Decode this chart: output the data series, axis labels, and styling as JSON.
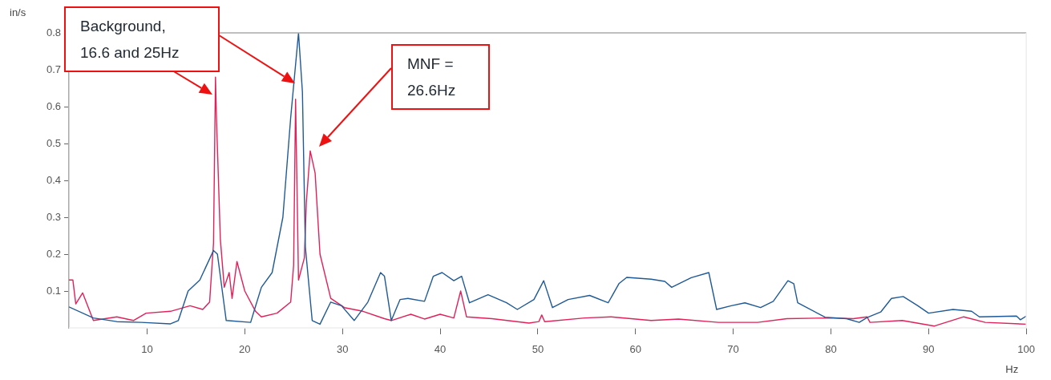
{
  "chart_data": {
    "type": "line",
    "xlabel": "Hz",
    "ylabel": "in/s",
    "xlim": [
      2,
      100
    ],
    "xticks": [
      10,
      20,
      30,
      40,
      50,
      60,
      70,
      80,
      90,
      100
    ],
    "ylim": [
      0,
      0.8
    ],
    "yticks": [
      0.1,
      0.2,
      0.3,
      0.4,
      0.5,
      0.6,
      0.7,
      0.8
    ],
    "grid": false,
    "legend": false,
    "marker": "none",
    "line_style": "solid",
    "annotations": [
      "Background, 16.6 and 25Hz",
      "MNF = 26.6Hz"
    ],
    "series": [
      {
        "color": "#1f5a96",
        "x": [
          2,
          4.5,
          6.9,
          9.4,
          12.4,
          13.2,
          14.2,
          15.4,
          16.8,
          17.2,
          18.1,
          20.6,
          21,
          21.7,
          22.8,
          23.9,
          24.7,
          25.5,
          25.9,
          26.2,
          26.9,
          27.7,
          28.8,
          29.9,
          31.2,
          32.6,
          33.9,
          34.3,
          35,
          35.9,
          36.7,
          38.4,
          39.3,
          40.2,
          41.4,
          42.2,
          43,
          44.9,
          46.8,
          47.9,
          49.6,
          50.6,
          51.5,
          53.1,
          55.3,
          57.2,
          58.3,
          59.1,
          61.6,
          63,
          63.7,
          65.7,
          67.5,
          68.3,
          69.8,
          71.2,
          72.8,
          74.1,
          75.6,
          76.2,
          76.6,
          79.4,
          81.6,
          82.9,
          83.7,
          85.1,
          86.2,
          87.4,
          88.9,
          90,
          92.5,
          94.4,
          95.2,
          99,
          99.4,
          100
        ],
        "values": [
          0.057,
          0.027,
          0.017,
          0.015,
          0.011,
          0.02,
          0.1,
          0.13,
          0.21,
          0.2,
          0.02,
          0.015,
          0.05,
          0.11,
          0.15,
          0.3,
          0.57,
          0.8,
          0.64,
          0.22,
          0.02,
          0.01,
          0.07,
          0.06,
          0.02,
          0.07,
          0.15,
          0.14,
          0.02,
          0.077,
          0.08,
          0.072,
          0.14,
          0.15,
          0.128,
          0.14,
          0.068,
          0.09,
          0.068,
          0.05,
          0.077,
          0.128,
          0.055,
          0.077,
          0.088,
          0.068,
          0.12,
          0.137,
          0.132,
          0.126,
          0.11,
          0.136,
          0.15,
          0.05,
          0.06,
          0.068,
          0.055,
          0.072,
          0.128,
          0.12,
          0.068,
          0.029,
          0.025,
          0.015,
          0.028,
          0.043,
          0.08,
          0.085,
          0.06,
          0.04,
          0.05,
          0.045,
          0.03,
          0.032,
          0.022,
          0.032
        ]
      },
      {
        "color": "#e0215a",
        "x": [
          2,
          2.4,
          2.7,
          3.4,
          4.5,
          6.9,
          8.6,
          9.9,
          12.4,
          14.4,
          15.7,
          16.4,
          16.8,
          17,
          17.1,
          17.5,
          17.9,
          18.4,
          18.7,
          19.2,
          20,
          21.1,
          21.7,
          23.3,
          24.7,
          25,
          25.2,
          25.5,
          26.1,
          26.3,
          26.7,
          27.2,
          27.7,
          28.8,
          30.2,
          32.1,
          34.3,
          35,
          37,
          38.4,
          40,
          41.4,
          42.1,
          42.7,
          45.3,
          49.1,
          50.1,
          50.4,
          50.7,
          54.8,
          57.5,
          61.6,
          64.4,
          68.5,
          72.5,
          75.5,
          79.9,
          82.3,
          83.7,
          84,
          87.3,
          90.6,
          93.6,
          95.8,
          100
        ],
        "values": [
          0.13,
          0.13,
          0.065,
          0.095,
          0.02,
          0.03,
          0.02,
          0.04,
          0.045,
          0.06,
          0.05,
          0.07,
          0.23,
          0.68,
          0.57,
          0.24,
          0.11,
          0.15,
          0.08,
          0.18,
          0.1,
          0.045,
          0.03,
          0.04,
          0.07,
          0.17,
          0.62,
          0.13,
          0.19,
          0.34,
          0.48,
          0.42,
          0.2,
          0.08,
          0.055,
          0.045,
          0.025,
          0.02,
          0.037,
          0.024,
          0.037,
          0.027,
          0.1,
          0.03,
          0.025,
          0.013,
          0.017,
          0.035,
          0.017,
          0.027,
          0.03,
          0.02,
          0.024,
          0.015,
          0.015,
          0.025,
          0.027,
          0.025,
          0.03,
          0.015,
          0.02,
          0.005,
          0.03,
          0.015,
          0.01
        ]
      }
    ]
  }
}
